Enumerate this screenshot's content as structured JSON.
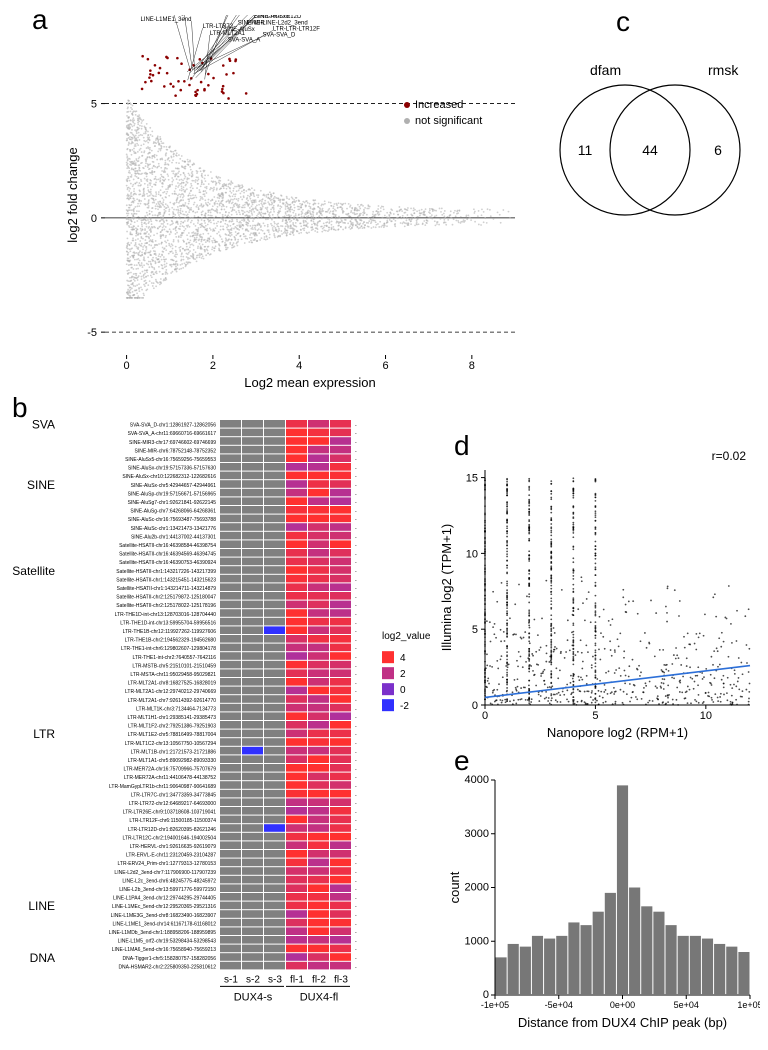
{
  "panelA": {
    "label": "a",
    "type": "scatter-ma-plot",
    "x_title": "Log2 mean expression",
    "y_title": "log2 fold change",
    "xlim": [
      -0.5,
      9
    ],
    "ylim": [
      -6,
      8
    ],
    "hlines": [
      -5,
      0,
      5
    ],
    "xticks": [
      0,
      2,
      4,
      6,
      8
    ],
    "yticks": [
      -5,
      0,
      5
    ],
    "legend": [
      {
        "label": "Increased",
        "color": "#8b0000"
      },
      {
        "label": "not significant",
        "color": "#b0b0b0"
      }
    ],
    "point_color_ns": "#b0b0b0",
    "point_color_inc": "#8b0000",
    "annotations": [
      "SINE-AluSx",
      "SINE-MIR",
      "SINE-AluSx1",
      "HSATII",
      "HSATII",
      "LTR-MSTA",
      "LTR-HERVL",
      "SVA-SVA_D",
      "LTR-LTR-LTR12F",
      "LINE-LINE-L2d2_3end",
      "LTR-LTR-LTR12D",
      "LTR-LTR26E",
      "DNA-Tigger1",
      "LINE-L1M5_orf2",
      "SVA-SVA_A",
      "LTR-MLT2A1",
      "LTR-LTR72",
      "LINE-L1ME1_3end",
      "SINE-AluSg",
      "LTR-ERVL-E"
    ]
  },
  "panelB": {
    "label": "b",
    "type": "heatmap",
    "groups": [
      {
        "name": "SVA",
        "rows": [
          "SVA-SVA_D-chr1:12861927-12862056",
          "SVA-SVA_A-chr11:69660716-69661617"
        ]
      },
      {
        "name": "SINE",
        "rows": [
          "SINE-MIR3-chr17:69746602-69746699",
          "SINE-MIR-chr6:78752148-78752352",
          "SINE-AluSx5-chr16:75659256-75659553",
          "SINE-AluSx-chr19:57157336-57157630",
          "SINE-AluSx-chr10:122682312-122682616",
          "SINE-AluSx-chr5:42944657-42944961",
          "SINE-AluSp-chr19:57156671-57156965",
          "SINE-AluSg7-chr1:92621841-92622145",
          "SINE-AluSg-chr7:64268066-64268361",
          "SINE-AluSc-chr16:75693487-75693788",
          "SINE-AluSc-chr1:13421473-13421776",
          "SINE-Alu2b-chr1:44137002-44137301"
        ]
      },
      {
        "name": "Satellite",
        "rows": [
          "Satellite-HSATII-chr16:46398584-46398754",
          "Satellite-HSATII-chr16:46394569-46394745",
          "Satellite-HSATII-chr16:46390753-46390924",
          "Satellite-HSATII-chr1:143217226-143217399",
          "Satellite-HSATII-chr1:143215451-143215623",
          "Satellite-HSATII-chr1:143214711-143214879",
          "Satellite-HSATII-chr2:125179872-125180047",
          "Satellite-HSATII-chr2:125178022-125178196"
        ]
      },
      {
        "name": "LTR",
        "rows": [
          "LTR-THE1D-int-chr13:128703016-128704440",
          "LTR-THE1D-int-chr13:59955704-59956516",
          "LTR-THE1B-chr12:119927262-119927606",
          "LTR-THE1B-chr2:194562329-194562680",
          "LTR-THE1-int-chr6:129802607-129804178",
          "LTR-THE1-int-chr2:7640557-7642116",
          "LTR-MSTB-chr5:21510101-21510459",
          "LTR-MSTA-chr11:95029458-95029821",
          "LTR-MLT2A1-chr8:16827525-16828019",
          "LTR-MLT2A1-chr12:29740212-29740669",
          "LTR-MLT2A1-chr7:92614392-92614770",
          "LTR-MLT1K-chr3:7134464-7134773",
          "LTR-MLT1H1-chr1:29385141-29385473",
          "LTR-MLT1F2-chr2:79251386-79251903",
          "LTR-MLT1E2-chr5:78816499-78817004",
          "LTR-MLT1C2-chr13:10567750-10567294",
          "LTR-MLT1B-chr1:21721573-21721886",
          "LTR-MLT1A1-chr5:89092982-89093330",
          "LTR-MER72A-chr16:75709966-75707679",
          "LTR-MER72A-chr11:44106478-44138752",
          "LTR-MamGypLTR1b-chr11:90640987-90641689",
          "LTR-LTR7C-chr1:34773359-34773845",
          "LTR-LTR72-chr12:64689217-64693000",
          "LTR-LTR26E-chr9:103718608-103719041",
          "LTR-LTR12F-chr6:11500185-11500374",
          "LTR-LTR12D-chr1:82620395-82621246",
          "LTR-LTR12C-chr2:194001646-194002504",
          "LTR-HERVL-chr1:92616635-92619079",
          "LTR-ERVL-E-chr11:23120459-23104287",
          "LTR-ERV24_Prim-chr1:12779313-12780153"
        ]
      },
      {
        "name": "LINE",
        "rows": [
          "LINE-L2d2_3end-chr7:117906900-117907239",
          "LINE-L2c_3end-chr6:48245775-48245972",
          "LINE-L2b_3end-chr13:59971776-59972150",
          "LINE-L1PA4_3end-chr12:29744295-29744405",
          "LINE-L1MEc_5end-chr12:29520365-29521316",
          "LINE-L1ME3G_3end-chr8:16823490-16823907",
          "LINE-L1ME1_3end-chr14:61167178-61168012",
          "LINE-L1MDb_3end-chr1:188958206-188959895",
          "LINE-L1M5_orf2-chr19:53298434-53298543",
          "LINE-L1MA6_5end-chr16:75658940-75659213"
        ]
      },
      {
        "name": "DNA",
        "rows": [
          "DNA-Tigger1-chr5:158280757-158282056",
          "DNA-HSMAR2-chr2:225809350-225810612"
        ]
      }
    ],
    "columns": [
      "s-1",
      "s-2",
      "s-3",
      "fl-1",
      "fl-2",
      "fl-3"
    ],
    "group_labels_bottom": [
      "DUX4-s",
      "DUX4-fl"
    ],
    "legend_title": "log2_value",
    "legend_ticks": [
      4,
      2,
      0,
      -2
    ],
    "colors": {
      "na": "#808080",
      "low": "#3030ff",
      "mid": "#9030b0",
      "high": "#ff3030"
    },
    "font_row": 5
  },
  "panelC": {
    "label": "c",
    "type": "venn",
    "left_label": "dfam",
    "right_label": "rmsk",
    "left_only": 11,
    "overlap": 44,
    "right_only": 6,
    "stroke": "#000000"
  },
  "panelD": {
    "label": "d",
    "type": "scatter",
    "x_title": "Nanopore  log2 (RPM+1)",
    "y_title": "Illumina  log2 (TPM+1)",
    "xlim": [
      0,
      12
    ],
    "ylim": [
      0,
      15.5
    ],
    "xticks": [
      0,
      5,
      10
    ],
    "yticks": [
      0,
      5,
      10,
      15
    ],
    "r_label": "r=0.02",
    "point_color": "#000000",
    "fit_line_color": "#2c6fd8",
    "fit_line": {
      "x0": 0,
      "y0": 0.5,
      "x1": 12,
      "y1": 2.6
    }
  },
  "panelE": {
    "label": "e",
    "type": "histogram",
    "x_title": "Distance from DUX4 ChIP peak (bp)",
    "y_title": "count",
    "xlim": [
      -100000,
      100000
    ],
    "ylim": [
      0,
      4000
    ],
    "xticks": [
      "-1e+05",
      "-5e+04",
      "0e+00",
      "5e+04",
      "1e+05"
    ],
    "yticks": [
      0,
      1000,
      2000,
      3000,
      4000
    ],
    "bar_color": "#777777",
    "values": [
      700,
      950,
      900,
      1100,
      1050,
      1100,
      1350,
      1300,
      1550,
      1900,
      3900,
      2000,
      1650,
      1550,
      1300,
      1100,
      1100,
      1050,
      950,
      900,
      800
    ]
  }
}
